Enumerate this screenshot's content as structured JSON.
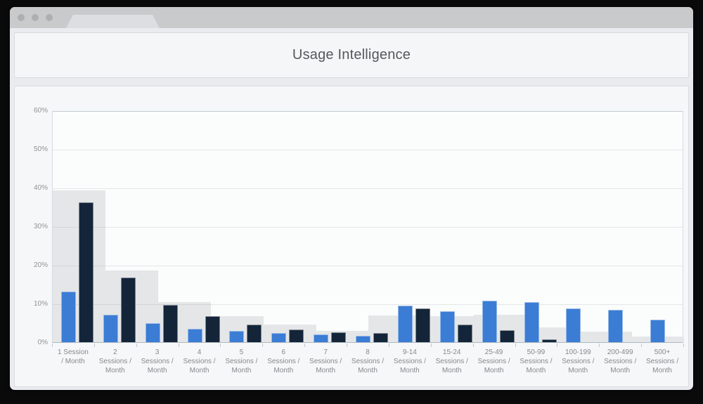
{
  "header": {
    "title": "Usage Intelligence"
  },
  "window": {
    "button_count": 3,
    "icons": {
      "window_button": "circle",
      "tab": "browser-tab-trapezoid"
    }
  },
  "colors": {
    "backdrop": "#0a0a0a",
    "titlebar": "#c9cacc",
    "blue_bar": "#3b7cd4",
    "navy_bar": "#142539",
    "background_bar": "#e5e6e8"
  },
  "chart_data": {
    "type": "bar",
    "title": "Usage Intelligence",
    "xlabel": "",
    "ylabel": "",
    "ylim": [
      0,
      60
    ],
    "grid": true,
    "legend": "none",
    "yticks": [
      "0%",
      "10%",
      "20%",
      "30%",
      "40%",
      "50%",
      "60%"
    ],
    "categories": [
      [
        "1 Session",
        "/ Month"
      ],
      [
        "2",
        "Sessions /",
        "Month"
      ],
      [
        "3",
        "Sessions /",
        "Month"
      ],
      [
        "4",
        "Sessions /",
        "Month"
      ],
      [
        "5",
        "Sessions /",
        "Month"
      ],
      [
        "6",
        "Sessions /",
        "Month"
      ],
      [
        "7",
        "Sessions /",
        "Month"
      ],
      [
        "8",
        "Sessions /",
        "Month"
      ],
      [
        "9-14",
        "Sessions /",
        "Month"
      ],
      [
        "15-24",
        "Sessions /",
        "Month"
      ],
      [
        "25-49",
        "Sessions /",
        "Month"
      ],
      [
        "50-99",
        "Sessions /",
        "Month"
      ],
      [
        "100-199",
        "Sessions /",
        "Month"
      ],
      [
        "200-499",
        "Sessions /",
        "Month"
      ],
      [
        "500+",
        "Sessions /",
        "Month"
      ]
    ],
    "series": [
      {
        "name": "blue",
        "color": "#3b7cd4",
        "values": [
          13.1,
          7.1,
          4.9,
          3.5,
          2.9,
          2.4,
          2.0,
          1.7,
          9.4,
          8.0,
          10.7,
          10.4,
          8.7,
          8.4,
          5.8
        ]
      },
      {
        "name": "dark-navy",
        "color": "#142539",
        "values": [
          36.2,
          16.7,
          9.7,
          6.8,
          4.5,
          3.3,
          2.6,
          2.3,
          8.7,
          4.5,
          3.1,
          0.8,
          0,
          0,
          0
        ]
      }
    ],
    "background_steps": {
      "note": "gray stepped background area, 12 equal-width buckets across plot",
      "color": "#e5e6e8",
      "values": [
        39.2,
        18.6,
        10.3,
        6.8,
        4.5,
        3.0,
        6.9,
        6.7,
        7.1,
        3.8,
        2.7,
        1.5
      ]
    }
  }
}
